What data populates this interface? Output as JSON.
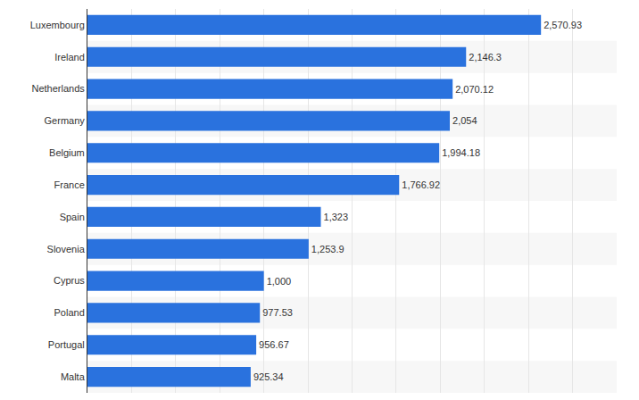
{
  "chart_data": {
    "type": "bar",
    "orientation": "horizontal",
    "categories": [
      "Luxembourg",
      "Ireland",
      "Netherlands",
      "Germany",
      "Belgium",
      "France",
      "Spain",
      "Slovenia",
      "Cyprus",
      "Poland",
      "Portugal",
      "Malta"
    ],
    "values": [
      2570.93,
      2146.3,
      2070.12,
      2054,
      1994.18,
      1766.92,
      1323,
      1253.9,
      1000,
      977.53,
      956.67,
      925.34
    ],
    "value_labels": [
      "2,570.93",
      "2,146.3",
      "2,070.12",
      "2,054",
      "1,994.18",
      "1,766.92",
      "1,323",
      "1,253.9",
      "1,000",
      "977.53",
      "956.67",
      "925.34"
    ],
    "color": "#2a72de",
    "xlim": [
      0,
      3000
    ],
    "xticks": [
      0,
      250,
      500,
      750,
      1000,
      1250,
      1500,
      1750,
      2000,
      2250,
      2500,
      2750,
      3000
    ],
    "grid": true,
    "data_labels": true,
    "tick_labels": "y"
  }
}
